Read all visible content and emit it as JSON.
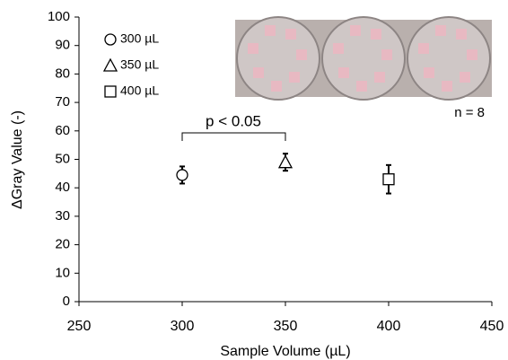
{
  "chart_data": {
    "type": "scatter",
    "xlabel": "Sample Volume (µL)",
    "ylabel": "ΔGray Value (-)",
    "xlim": [
      250,
      450
    ],
    "xticks": [
      250,
      300,
      350,
      400,
      450
    ],
    "ylim": [
      0,
      100
    ],
    "yticks": [
      0,
      10,
      20,
      30,
      40,
      50,
      60,
      70,
      80,
      90,
      100
    ],
    "legend": "top-left",
    "series": [
      {
        "name": "300 µL",
        "color": "#000000",
        "marker": "circle",
        "x": [
          300
        ],
        "values": [
          44.5
        ],
        "errors": [
          3
        ]
      },
      {
        "name": "350 µL",
        "color": "#000000",
        "marker": "triangle",
        "x": [
          350
        ],
        "values": [
          49
        ],
        "errors": [
          3
        ]
      },
      {
        "name": "400 µL",
        "color": "#000000",
        "marker": "square",
        "x": [
          400
        ],
        "values": [
          43
        ],
        "errors": [
          5
        ]
      }
    ],
    "annotations": [
      "p < 0.05",
      "n = 8"
    ]
  }
}
